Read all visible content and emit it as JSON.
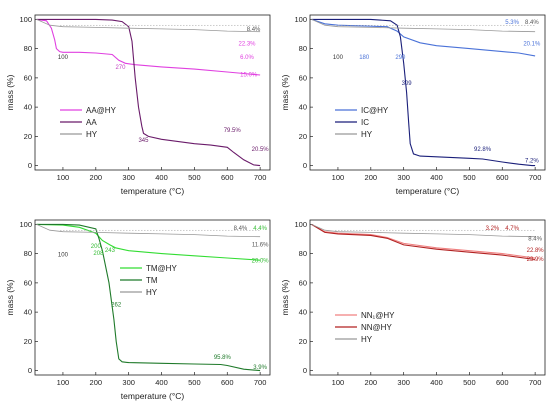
{
  "chart_data": [
    {
      "type": "line",
      "xlabel": "temperature (°C)",
      "ylabel": "mass (%)",
      "xlim": [
        15,
        730
      ],
      "ylim": [
        -3,
        103
      ],
      "xticks": [
        100,
        200,
        300,
        400,
        500,
        600,
        700
      ],
      "yticks": [
        0,
        20,
        40,
        60,
        80,
        100
      ],
      "legend_position": "lower-left",
      "series": [
        {
          "name": "AA@HY",
          "color": "#e040e0",
          "x": [
            20,
            50,
            65,
            75,
            80,
            90,
            100,
            150,
            200,
            250,
            270,
            290,
            320,
            400,
            500,
            600,
            650,
            700
          ],
          "y": [
            100,
            99,
            94,
            86,
            80,
            78,
            77.5,
            77.5,
            77,
            76,
            72,
            70,
            69,
            67.5,
            66,
            64,
            63,
            62
          ]
        },
        {
          "name": "AA",
          "color": "#6a1b6a",
          "x": [
            20,
            100,
            200,
            250,
            280,
            300,
            310,
            320,
            330,
            340,
            345,
            360,
            400,
            500,
            550,
            600,
            620,
            650,
            680,
            700
          ],
          "y": [
            100,
            100,
            100,
            99.5,
            98.5,
            95,
            85,
            60,
            40,
            27,
            22,
            20,
            18,
            15,
            14,
            12.5,
            9,
            4,
            0.5,
            0
          ]
        },
        {
          "name": "HY",
          "color": "#999999",
          "x": [
            20,
            60,
            100,
            200,
            300,
            400,
            500,
            600,
            700
          ],
          "y": [
            100,
            96,
            95,
            94.5,
            94,
            93.5,
            93,
            92,
            91.6
          ]
        }
      ],
      "annotations": [
        "100",
        "270",
        "345",
        "8.4%",
        "22.3%",
        "6.0%",
        "15.0%",
        "79.5%",
        "20.5%"
      ]
    },
    {
      "type": "line",
      "xlabel": "temperature (°C)",
      "ylabel": "mass (%)",
      "xlim": [
        15,
        730
      ],
      "ylim": [
        -3,
        103
      ],
      "xticks": [
        100,
        200,
        300,
        400,
        500,
        600,
        700
      ],
      "yticks": [
        0,
        20,
        40,
        60,
        80,
        100
      ],
      "legend_position": "lower-left",
      "series": [
        {
          "name": "IC@HY",
          "color": "#4a72d8",
          "x": [
            20,
            60,
            100,
            180,
            250,
            280,
            300,
            350,
            400,
            500,
            600,
            650,
            700
          ],
          "y": [
            100,
            97,
            96,
            95.5,
            95,
            92,
            88,
            84,
            82,
            80,
            78,
            77,
            75
          ]
        },
        {
          "name": "IC",
          "color": "#1a1f7a",
          "x": [
            20,
            100,
            200,
            260,
            280,
            290,
            300,
            309,
            315,
            320,
            330,
            350,
            400,
            500,
            540,
            600,
            650,
            690,
            700
          ],
          "y": [
            100,
            100,
            100,
            99,
            96,
            88,
            70,
            50,
            30,
            15,
            8,
            6.5,
            6,
            5,
            4.5,
            2.5,
            1,
            0,
            0
          ]
        },
        {
          "name": "HY",
          "color": "#999999",
          "x": [
            20,
            60,
            100,
            200,
            300,
            400,
            500,
            600,
            700
          ],
          "y": [
            100,
            96,
            95,
            94.5,
            94,
            93.5,
            93,
            92,
            91.6
          ]
        }
      ],
      "annotations": [
        "100",
        "180",
        "290",
        "309",
        "5.3%",
        "8.4%",
        "20.1%",
        "92.8%",
        "7.2%"
      ]
    },
    {
      "type": "line",
      "xlabel": "temperature (°C)",
      "ylabel": "mass (%)",
      "xlim": [
        15,
        730
      ],
      "ylim": [
        -3,
        103
      ],
      "xticks": [
        100,
        200,
        300,
        400,
        500,
        600,
        700
      ],
      "yticks": [
        0,
        20,
        40,
        60,
        80,
        100
      ],
      "legend_position": "center",
      "series": [
        {
          "name": "TM@HY",
          "color": "#33dd33",
          "x": [
            20,
            100,
            150,
            200,
            208,
            220,
            243,
            260,
            300,
            400,
            500,
            600,
            700
          ],
          "y": [
            100,
            99.5,
            98,
            94,
            92,
            89,
            86,
            84,
            82,
            80,
            78.5,
            77,
            75.5
          ]
        },
        {
          "name": "TM",
          "color": "#1f7a2a",
          "x": [
            20,
            100,
            150,
            200,
            210,
            220,
            240,
            255,
            262,
            270,
            280,
            300,
            400,
            500,
            580,
            600,
            650,
            700
          ],
          "y": [
            100,
            100,
            99.5,
            97,
            90,
            82,
            60,
            35,
            20,
            8,
            6,
            5.5,
            5,
            4.5,
            4.2,
            3.5,
            1,
            0
          ]
        },
        {
          "name": "HY",
          "color": "#999999",
          "x": [
            20,
            60,
            100,
            200,
            300,
            400,
            500,
            600,
            700
          ],
          "y": [
            100,
            96,
            95,
            94.5,
            94,
            93.5,
            93,
            92,
            91.6
          ]
        }
      ],
      "annotations": [
        "100",
        "200",
        "208",
        "243",
        "262",
        "8.4%",
        "4.4%",
        "11.6%",
        "20.0%",
        "95.8%",
        "3.9%"
      ]
    },
    {
      "type": "line",
      "xlabel": "",
      "ylabel": "mass (%)",
      "xlim": [
        15,
        730
      ],
      "ylim": [
        -3,
        103
      ],
      "xticks": [
        100,
        200,
        300,
        400,
        500,
        600,
        700
      ],
      "yticks": [
        0,
        20,
        40,
        60,
        80,
        100
      ],
      "legend_position": "lower-left",
      "series": [
        {
          "name": "NN₁@HY",
          "color": "#f08080",
          "x": [
            20,
            60,
            100,
            200,
            250,
            300,
            400,
            500,
            600,
            700
          ],
          "y": [
            100,
            95,
            94,
            93,
            91,
            87,
            84,
            82,
            80,
            77
          ]
        },
        {
          "name": "NN@HY",
          "color": "#b22222",
          "x": [
            20,
            60,
            100,
            200,
            250,
            300,
            400,
            500,
            600,
            700
          ],
          "y": [
            100,
            94.5,
            93.5,
            92.5,
            90.5,
            86,
            83,
            81,
            79,
            76
          ]
        },
        {
          "name": "HY",
          "color": "#999999",
          "x": [
            20,
            60,
            100,
            200,
            300,
            400,
            500,
            600,
            700
          ],
          "y": [
            100,
            96,
            95,
            94.5,
            94,
            93.5,
            93,
            92,
            91.6
          ]
        }
      ],
      "annotations": [
        "3.2%",
        "4.7%",
        "8.4%",
        "22.8%",
        "23.9%"
      ]
    }
  ]
}
